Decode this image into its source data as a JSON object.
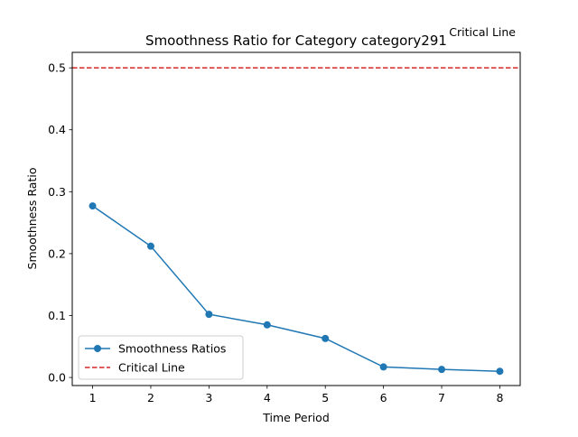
{
  "chart_data": {
    "type": "line",
    "title": "Smoothness Ratio for Category category291",
    "xlabel": "Time Period",
    "ylabel": "Smoothness Ratio",
    "x": [
      1,
      2,
      3,
      4,
      5,
      6,
      7,
      8
    ],
    "xlim": [
      0.65,
      8.35
    ],
    "ylim": [
      -0.013,
      0.525
    ],
    "xticks": [
      1,
      2,
      3,
      4,
      5,
      6,
      7,
      8
    ],
    "yticks": [
      0.0,
      0.1,
      0.2,
      0.3,
      0.4,
      0.5
    ],
    "ytick_labels": [
      "0.0",
      "0.1",
      "0.2",
      "0.3",
      "0.4",
      "0.5"
    ],
    "grid": false,
    "series": [
      {
        "name": "Smoothness Ratios",
        "color": "#1f77b4",
        "marker": "circle",
        "values": [
          0.277,
          0.212,
          0.102,
          0.085,
          0.063,
          0.017,
          0.013,
          0.01
        ]
      }
    ],
    "reference_line": {
      "name": "Critical Line",
      "y": 0.5,
      "color": "#d62728",
      "style": "dashed"
    },
    "annotation": "Critical Line",
    "legend": {
      "placement": "lower-left",
      "entries": [
        "Smoothness Ratios",
        "Critical Line"
      ]
    }
  }
}
